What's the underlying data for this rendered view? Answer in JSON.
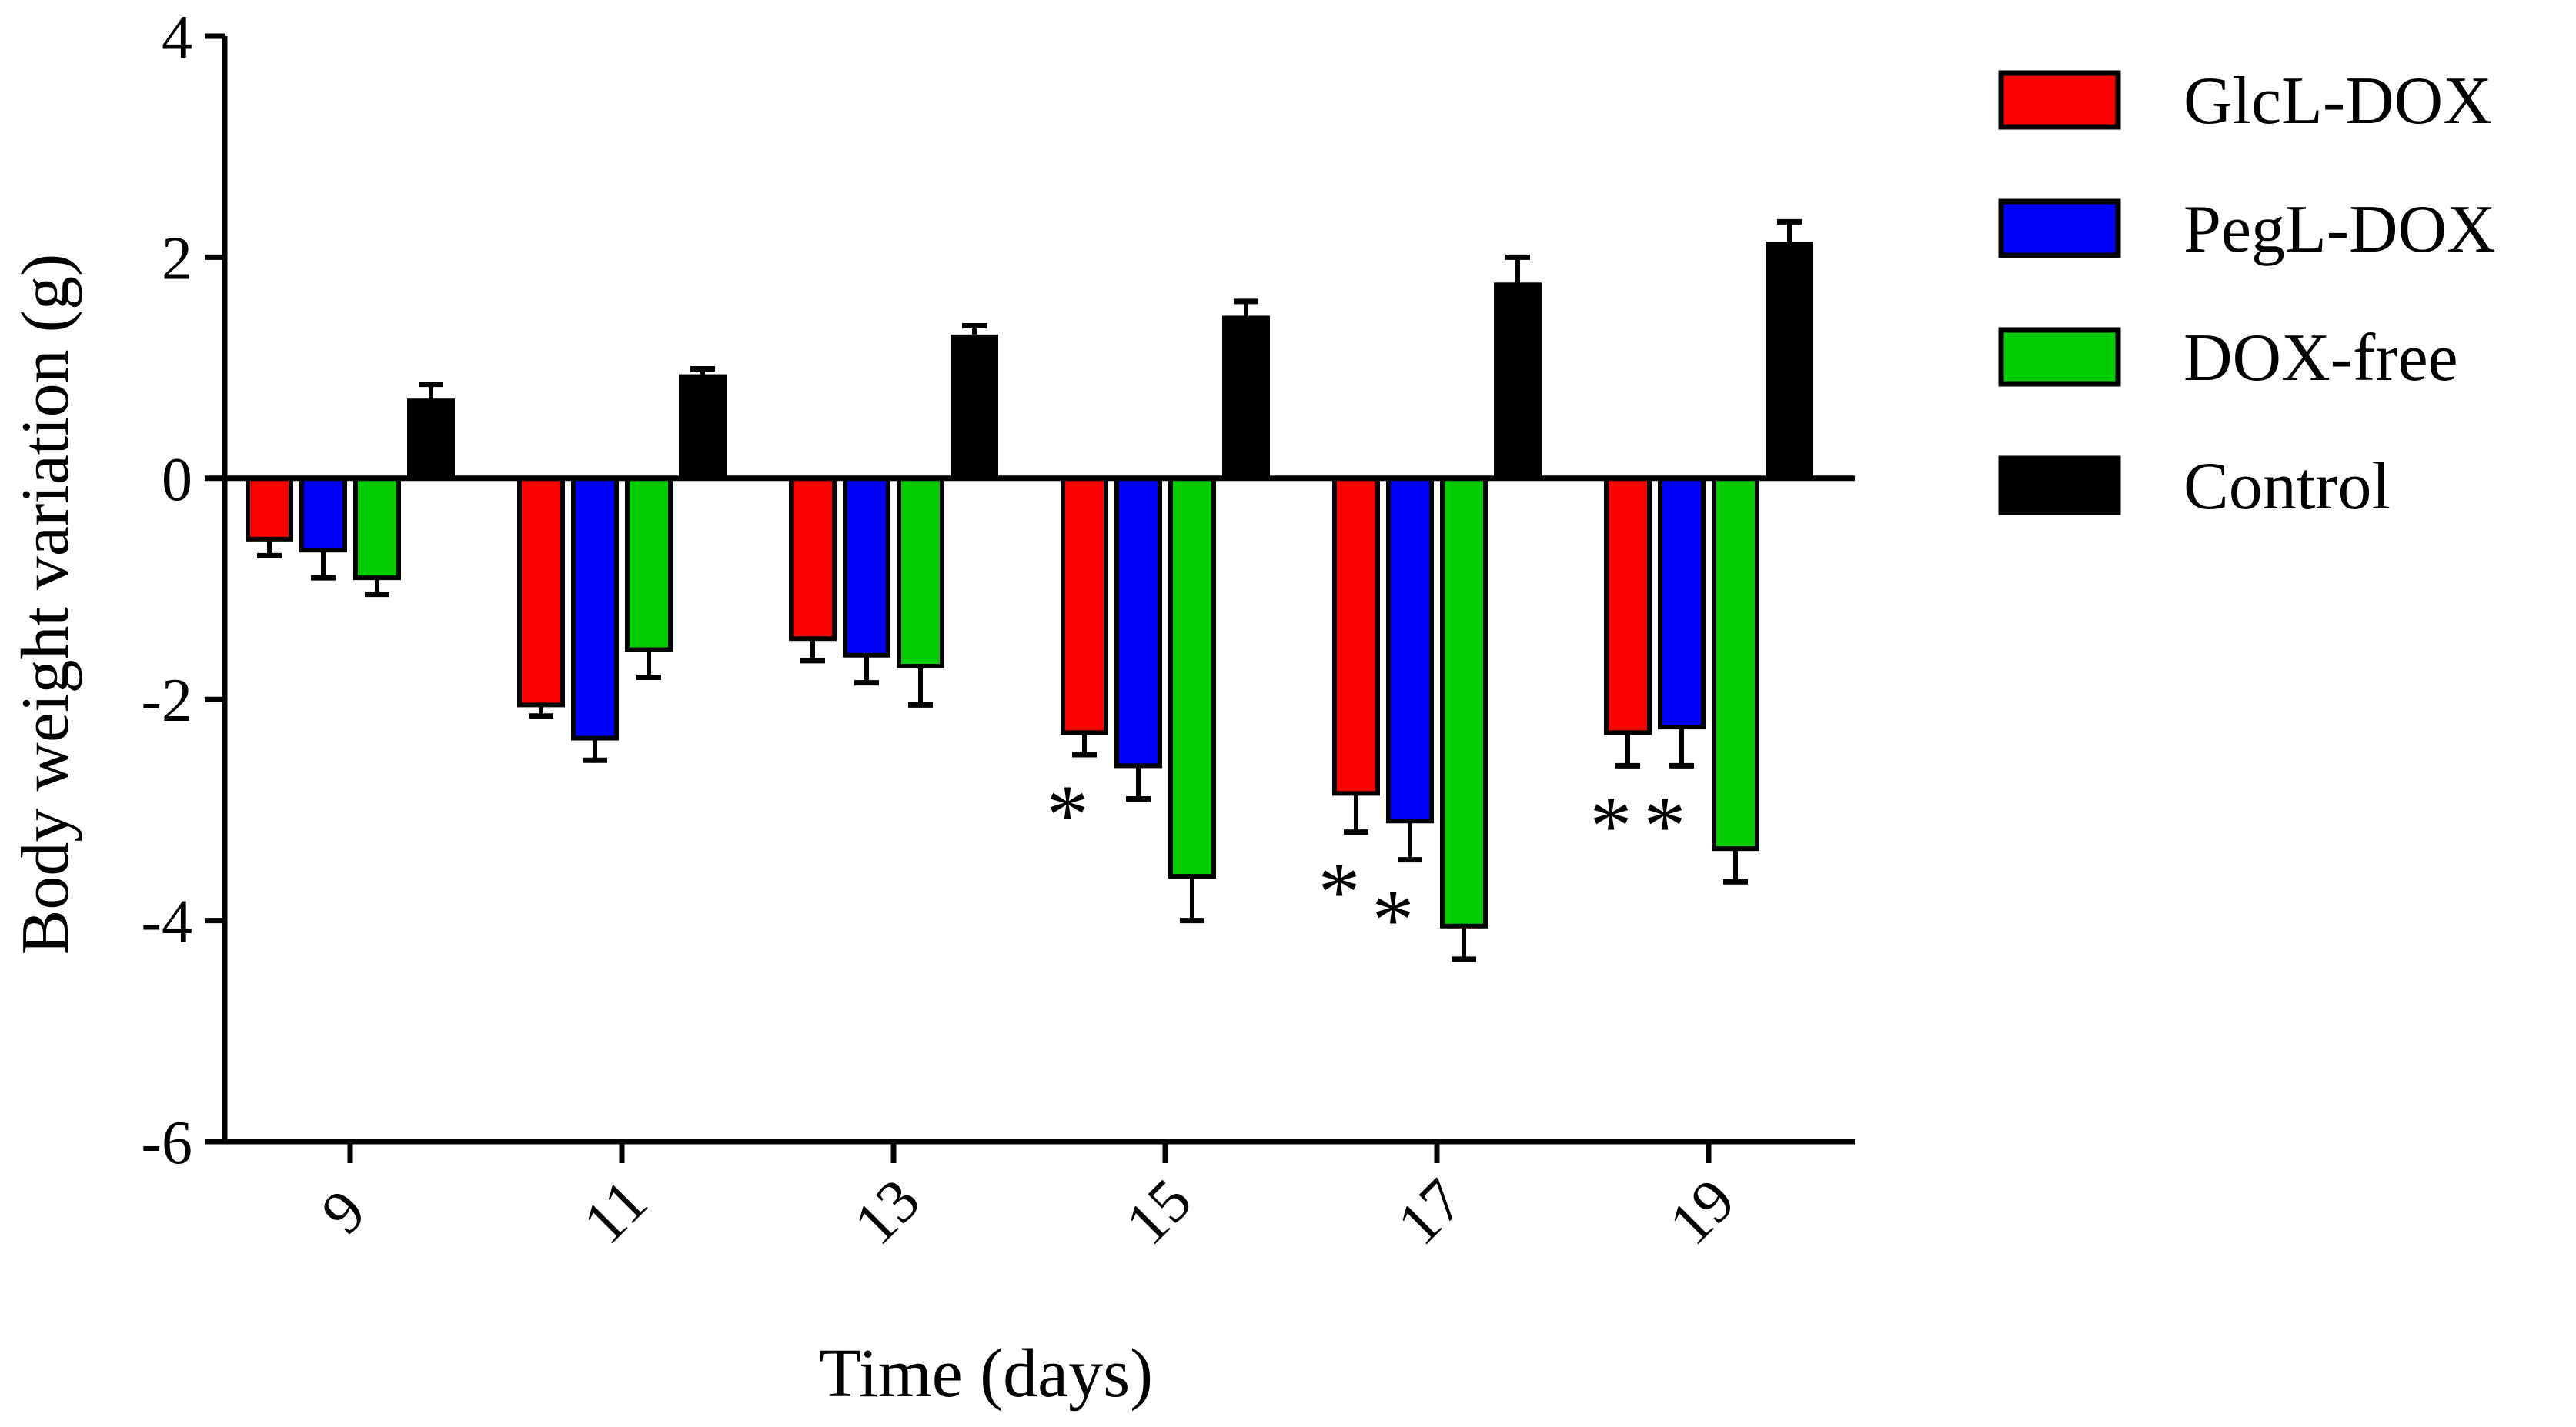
{
  "chart_data": {
    "type": "bar",
    "title": "",
    "xlabel": "Time (days)",
    "ylabel": "Body weight variation (g)",
    "ylim": [
      -6,
      4
    ],
    "yticks": [
      4,
      2,
      0,
      -2,
      -4,
      -6
    ],
    "ytick_labels": [
      "4",
      "2",
      "0",
      "-2",
      "-4",
      "-6"
    ],
    "categories": [
      "9",
      "11",
      "13",
      "15",
      "17",
      "19"
    ],
    "series": [
      {
        "name": "GlcL-DOX",
        "color": "#ff0000",
        "values": [
          -0.55,
          -2.05,
          -1.45,
          -2.3,
          -2.85,
          -2.3
        ],
        "errors": [
          0.15,
          0.1,
          0.2,
          0.2,
          0.35,
          0.3
        ]
      },
      {
        "name": "PegL-DOX",
        "color": "#0000ff",
        "values": [
          -0.65,
          -2.35,
          -1.6,
          -2.6,
          -3.1,
          -2.25
        ],
        "errors": [
          0.25,
          0.2,
          0.25,
          0.3,
          0.35,
          0.35
        ]
      },
      {
        "name": "DOX-free",
        "color": "#00cc00",
        "values": [
          -0.9,
          -1.55,
          -1.7,
          -3.6,
          -4.05,
          -3.35
        ],
        "errors": [
          0.15,
          0.25,
          0.35,
          0.4,
          0.3,
          0.3
        ]
      },
      {
        "name": "Control",
        "color": "#000000",
        "values": [
          0.7,
          0.92,
          1.28,
          1.45,
          1.75,
          2.12
        ],
        "errors": [
          0.15,
          0.07,
          0.1,
          0.15,
          0.25,
          0.2
        ]
      }
    ],
    "annotations": [
      {
        "text": "*",
        "category": "15",
        "series": "GlcL-DOX"
      },
      {
        "text": "*",
        "category": "17",
        "series": "GlcL-DOX"
      },
      {
        "text": "*",
        "category": "17",
        "series": "PegL-DOX"
      },
      {
        "text": "*",
        "category": "19",
        "series": "GlcL-DOX"
      },
      {
        "text": "*",
        "category": "19",
        "series": "PegL-DOX"
      }
    ],
    "legend_position": "right"
  }
}
